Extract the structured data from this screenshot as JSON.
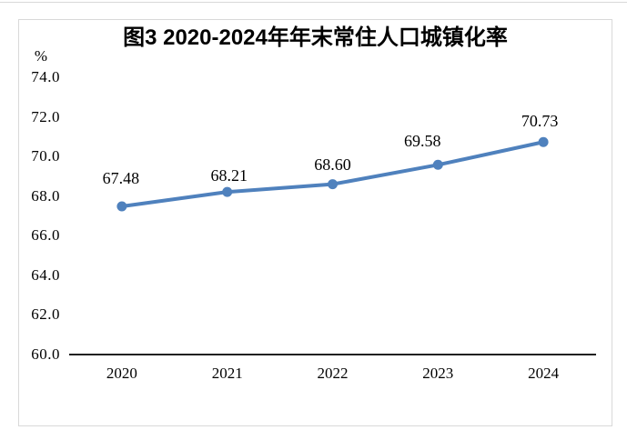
{
  "page": {
    "background": "#ffffff",
    "frame_color": "#d9d9d9",
    "axis_color": "#000000",
    "text_color": "#000000"
  },
  "chart_data": {
    "type": "line",
    "title": "图3 2020-2024年年末常住人口城镇化率",
    "unit_label": "%",
    "categories": [
      "2020",
      "2021",
      "2022",
      "2023",
      "2024"
    ],
    "series": [
      {
        "name": "",
        "values": [
          67.48,
          68.21,
          68.6,
          69.58,
          70.73
        ]
      }
    ],
    "data_labels": [
      "67.48",
      "68.21",
      "68.60",
      "69.58",
      "70.73"
    ],
    "y_ticks": [
      "74.0",
      "72.0",
      "70.0",
      "68.0",
      "66.0",
      "64.0",
      "62.0",
      "60.0"
    ],
    "ylim": [
      60.0,
      74.0
    ],
    "xlabel": "",
    "ylabel": "%",
    "grid": false,
    "legend": "none",
    "line_color": "#4f81bd",
    "marker": "circle"
  }
}
